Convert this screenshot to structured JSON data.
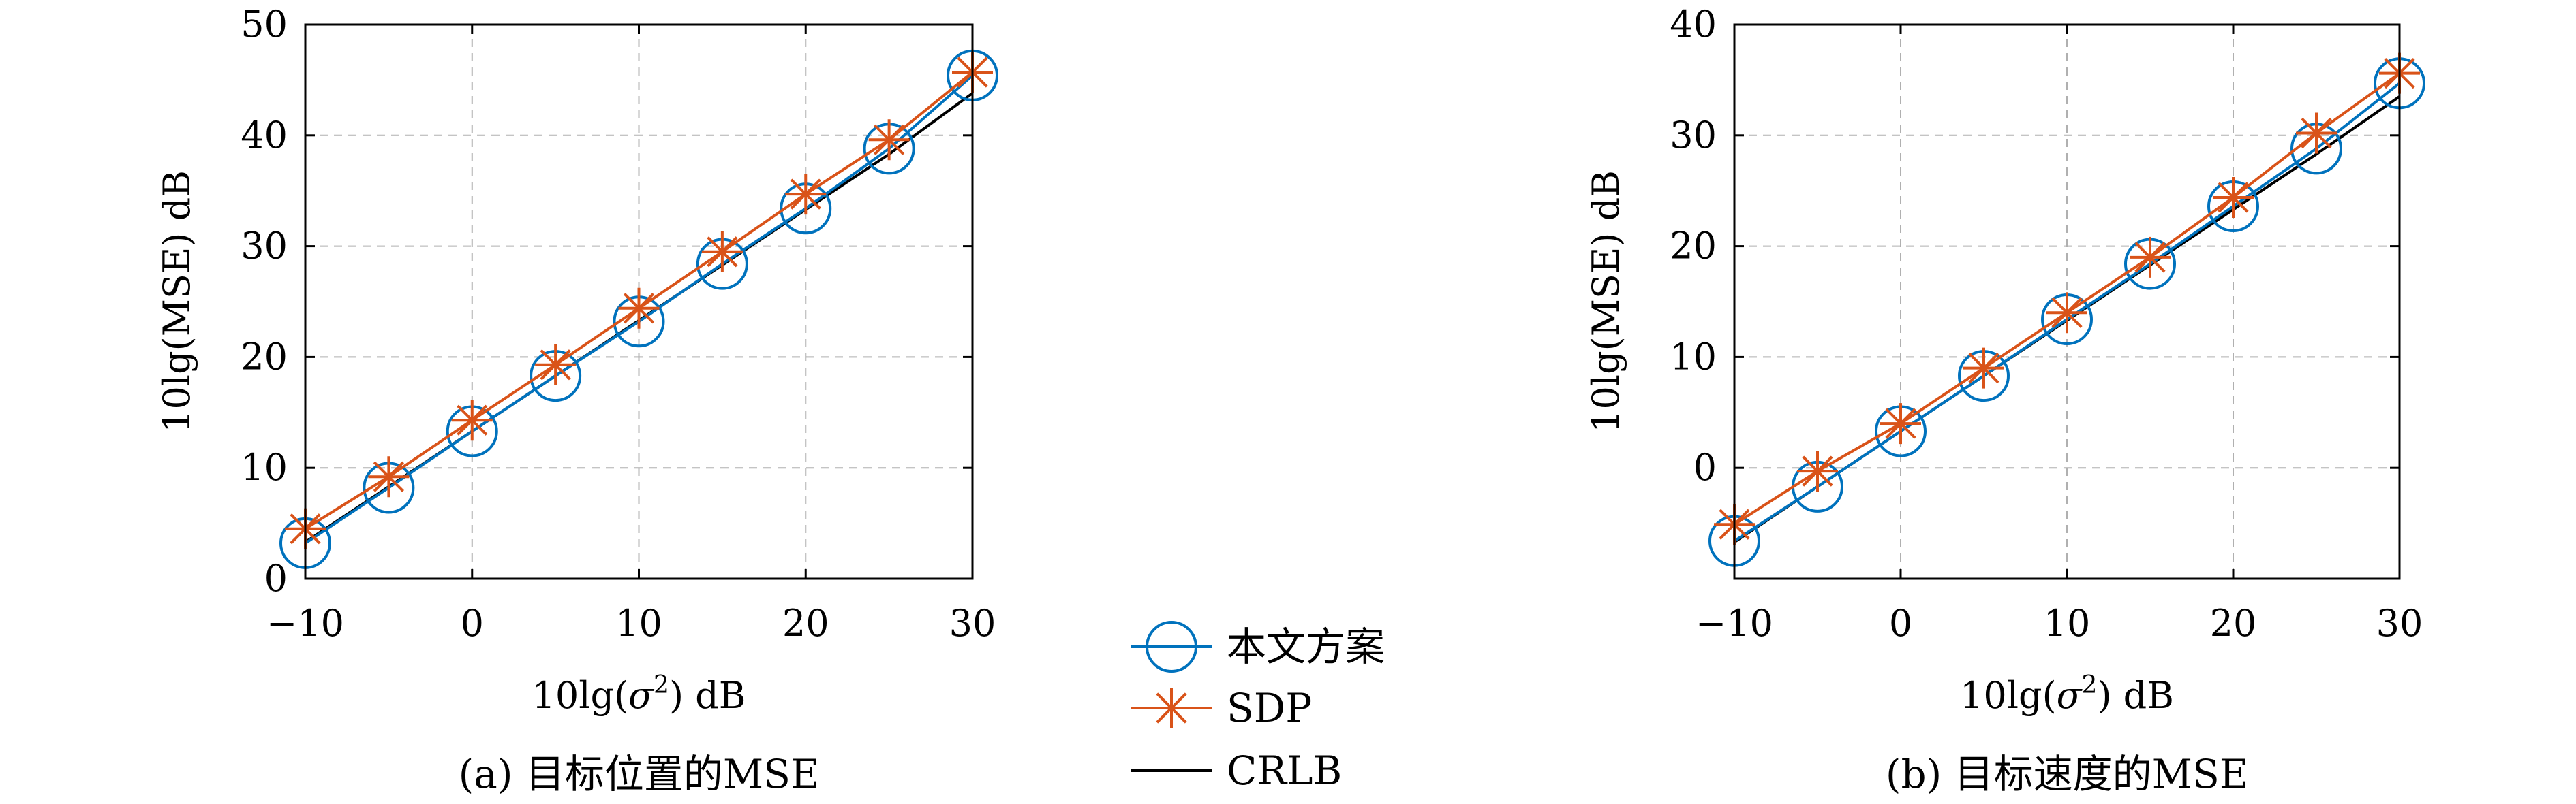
{
  "chart_data": [
    {
      "type": "line",
      "caption": "(a) 目标位置的MSE",
      "xlabel_prefix": "10lg(",
      "xlabel_symbol": "σ",
      "xlabel_sup": "2",
      "xlabel_suffix": ") dB",
      "ylabel": "10lg(MSE) dB",
      "xlim": [
        -10,
        30
      ],
      "ylim": [
        0,
        50
      ],
      "xticks": [
        -10,
        0,
        10,
        20,
        30
      ],
      "xtick_labels": [
        "−10",
        "0",
        "10",
        "20",
        "30"
      ],
      "yticks": [
        0,
        10,
        20,
        30,
        40,
        50
      ],
      "ytick_labels": [
        "0",
        "10",
        "20",
        "30",
        "40",
        "50"
      ],
      "grid": true,
      "x": [
        -10,
        -5,
        0,
        5,
        10,
        15,
        20,
        25,
        30
      ],
      "series": [
        {
          "name": "本文方案",
          "marker": "circle",
          "color": "#0072BD",
          "values": [
            3.2,
            8.2,
            13.3,
            18.3,
            23.2,
            28.4,
            33.4,
            38.8,
            45.4
          ]
        },
        {
          "name": "SDP",
          "marker": "asterisk",
          "color": "#D95319",
          "values": [
            4.5,
            9.2,
            14.3,
            19.3,
            24.4,
            29.5,
            34.7,
            39.6,
            45.7
          ]
        },
        {
          "name": "CRLB",
          "marker": "none",
          "color": "#000000",
          "values": [
            3.3,
            8.3,
            13.3,
            18.3,
            23.3,
            28.3,
            33.3,
            38.3,
            43.8
          ]
        }
      ]
    },
    {
      "type": "line",
      "caption": "(b) 目标速度的MSE",
      "xlabel_prefix": "10lg(",
      "xlabel_symbol": "σ",
      "xlabel_sup": "2",
      "xlabel_suffix": ") dB",
      "ylabel": "10lg(MSE) dB",
      "xlim": [
        -10,
        30
      ],
      "ylim": [
        -10,
        40
      ],
      "xticks": [
        -10,
        0,
        10,
        20,
        30
      ],
      "xtick_labels": [
        "−10",
        "0",
        "10",
        "20",
        "30"
      ],
      "yticks": [
        0,
        10,
        20,
        30,
        40
      ],
      "ytick_labels": [
        "0",
        "10",
        "20",
        "30",
        "40"
      ],
      "grid": true,
      "x": [
        -10,
        -5,
        0,
        5,
        10,
        15,
        20,
        25,
        30
      ],
      "series": [
        {
          "name": "本文方案",
          "marker": "circle",
          "color": "#0072BD",
          "values": [
            -6.6,
            -1.7,
            3.3,
            8.3,
            13.4,
            18.4,
            23.6,
            28.8,
            34.7
          ]
        },
        {
          "name": "SDP",
          "marker": "asterisk",
          "color": "#D95319",
          "values": [
            -5.1,
            -0.3,
            4.0,
            9.0,
            14.0,
            19.0,
            24.4,
            30.2,
            35.6
          ]
        },
        {
          "name": "CRLB",
          "marker": "none",
          "color": "#000000",
          "values": [
            -6.7,
            -1.7,
            3.3,
            8.3,
            13.3,
            18.3,
            23.3,
            28.3,
            33.5
          ]
        }
      ]
    }
  ],
  "legend": [
    {
      "label": "本文方案",
      "marker": "circle",
      "color": "#0072BD"
    },
    {
      "label": "SDP",
      "marker": "asterisk",
      "color": "#D95319"
    },
    {
      "label": "CRLB",
      "marker": "none",
      "color": "#000000"
    }
  ]
}
